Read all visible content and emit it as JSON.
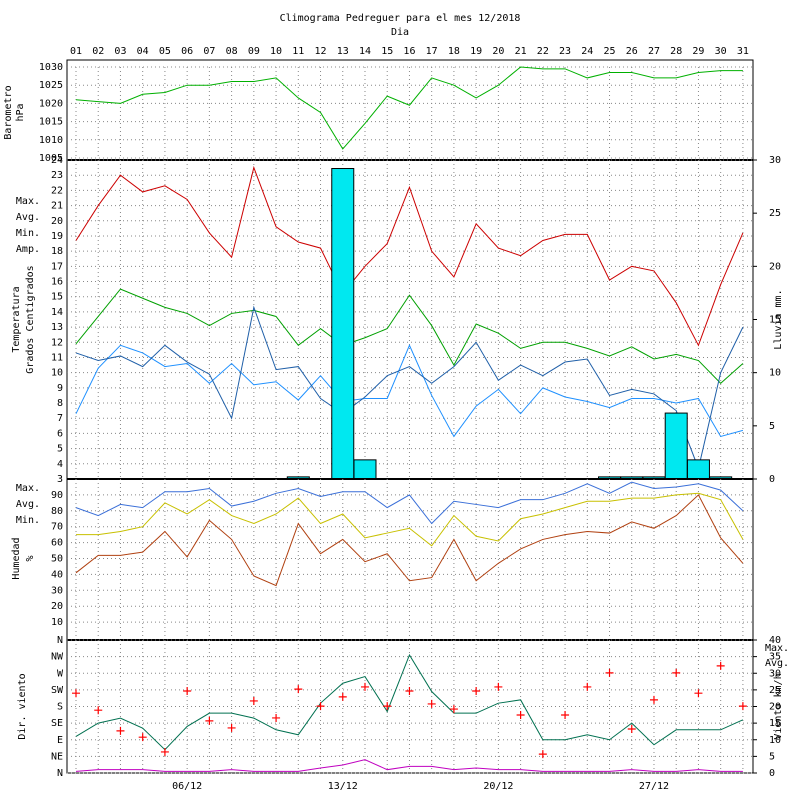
{
  "chart_data": [
    {
      "type": "line",
      "title": "Climograma Pedreguer para el mes 12/2018",
      "xlabel": "Dia",
      "categories": [
        "01",
        "02",
        "03",
        "04",
        "05",
        "06",
        "07",
        "08",
        "09",
        "10",
        "11",
        "12",
        "13",
        "14",
        "15",
        "16",
        "17",
        "18",
        "19",
        "20",
        "21",
        "22",
        "23",
        "24",
        "25",
        "26",
        "27",
        "28",
        "29",
        "30",
        "31"
      ],
      "ylabel": [
        "Barometro",
        "hPa"
      ],
      "ylabel_color": "#00a000",
      "ylim": [
        1005,
        1030
      ],
      "yticks": [
        1005,
        1010,
        1015,
        1020,
        1025,
        1030
      ],
      "grid": true,
      "series": [
        {
          "name": null,
          "color": "#00b000",
          "values": [
            1021,
            1020.5,
            1020,
            1022.5,
            1023,
            1025,
            1025,
            1026,
            1026,
            1027,
            1021.5,
            1017.5,
            1007.5,
            1014.5,
            1022,
            1019.5,
            1027,
            1025,
            1021.5,
            1025,
            1030,
            1029.5,
            1029.5,
            1027,
            1028.5,
            1028.5,
            1027,
            1027,
            1028.5,
            1029,
            1029
          ]
        }
      ]
    },
    {
      "type": "line",
      "ylabel": [
        "Temperatura",
        "Grados Centigrados"
      ],
      "ylabel_color": "#cc0000",
      "ylim": [
        3,
        24
      ],
      "yticks": [
        3,
        4,
        5,
        6,
        7,
        8,
        9,
        10,
        11,
        12,
        13,
        14,
        15,
        16,
        17,
        18,
        19,
        20,
        21,
        22,
        23,
        24
      ],
      "y2lim": [
        0,
        30
      ],
      "y2ticks": [
        0,
        5,
        10,
        15,
        20,
        25,
        30
      ],
      "grid": true,
      "series": [
        {
          "name": "Max.",
          "color": "#cc0000",
          "values": [
            18.7,
            21,
            23,
            21.9,
            22.3,
            21.4,
            19.2,
            17.6,
            23.5,
            19.6,
            18.6,
            18.2,
            15.2,
            17,
            18.5,
            22.2,
            18,
            16.3,
            19.8,
            18.2,
            17.7,
            18.7,
            19.1,
            19.1,
            16.1,
            17,
            16.7,
            14.6,
            11.8,
            15.8,
            19.2
          ]
        },
        {
          "name": "Avg.",
          "color": "#00a000",
          "values": [
            11.9,
            13.7,
            15.5,
            14.9,
            14.3,
            13.9,
            13.1,
            13.9,
            14.1,
            13.7,
            11.8,
            12.9,
            11.8,
            12.3,
            12.9,
            15.1,
            13.1,
            10.5,
            13.2,
            12.6,
            11.6,
            12,
            12,
            11.6,
            11.1,
            11.7,
            10.9,
            11.2,
            10.8,
            9.3,
            10.6
          ]
        },
        {
          "name": "Min.",
          "color": "#1e90ff",
          "values": [
            7.3,
            10.3,
            11.8,
            11.3,
            10.4,
            10.6,
            9.3,
            10.6,
            9.2,
            9.4,
            8.2,
            9.8,
            8.1,
            8.3,
            8.3,
            11.8,
            8.5,
            5.8,
            7.8,
            8.9,
            7.3,
            9,
            8.4,
            8.1,
            7.7,
            8.3,
            8.3,
            8,
            8.3,
            5.8,
            6.2
          ]
        },
        {
          "name": "Amp.",
          "color": "#1f5fa8",
          "values": [
            11.3,
            10.8,
            11.1,
            10.4,
            11.8,
            10.7,
            9.9,
            7,
            14.3,
            10.2,
            10.4,
            8.3,
            7.3,
            8.4,
            9.8,
            10.4,
            9.3,
            10.4,
            12,
            9.5,
            10.5,
            9.8,
            10.7,
            10.9,
            8.5,
            8.9,
            8.6,
            7.5,
            3.7,
            10,
            13
          ]
        },
        {
          "name": "Lluvia mm.",
          "type": "bar",
          "axis": "y2",
          "color": "#00e8f0",
          "values": [
            0,
            0,
            0,
            0,
            0,
            0,
            0,
            0,
            0,
            0,
            0.2,
            0,
            29.2,
            1.8,
            0,
            0,
            0,
            0,
            0,
            0,
            0,
            0,
            0,
            0,
            0.2,
            0.2,
            0.2,
            6.2,
            1.8,
            0.2,
            0
          ]
        }
      ]
    },
    {
      "type": "line",
      "ylabel": [
        "Humedad",
        "%"
      ],
      "ylabel_color": "#b04010",
      "ylim": [
        0,
        100
      ],
      "yticks": [
        10,
        20,
        30,
        40,
        50,
        60,
        70,
        80,
        90
      ],
      "grid": true,
      "series": [
        {
          "name": "Max.",
          "color": "#3a6fd8",
          "values": [
            82,
            77,
            84,
            82,
            92,
            92,
            94,
            83,
            86,
            91,
            94,
            89,
            92,
            92,
            82,
            90,
            72,
            86,
            84,
            82,
            87,
            87,
            91,
            97,
            91,
            98,
            94,
            95,
            97,
            93,
            80
          ]
        },
        {
          "name": "Avg.",
          "color": "#c8c000",
          "values": [
            65,
            65,
            67,
            70,
            85,
            78,
            87,
            77,
            72,
            78,
            88,
            72,
            78,
            63,
            66,
            69,
            58,
            77,
            64,
            61,
            75,
            78,
            82,
            86,
            86,
            88,
            88,
            90,
            91,
            87,
            62
          ]
        },
        {
          "name": "Min.",
          "color": "#b04010",
          "values": [
            41,
            52,
            52,
            54,
            67,
            51,
            74,
            62,
            39,
            33,
            72,
            53,
            62,
            48,
            53,
            36,
            38,
            62,
            36,
            47,
            56,
            62,
            65,
            67,
            66,
            73,
            69,
            77,
            90,
            63,
            47
          ]
        }
      ]
    },
    {
      "type": "line",
      "ylabel": [
        "Dir. viento"
      ],
      "ylabel_color": "#cc0000",
      "y2label": "Viento km/h",
      "y2label_color": "#c000c0",
      "categories": [
        null,
        null,
        null,
        null,
        null,
        "06/12",
        null,
        null,
        null,
        null,
        null,
        null,
        "13/12",
        null,
        null,
        null,
        null,
        null,
        null,
        "20/12",
        null,
        null,
        null,
        null,
        null,
        null,
        "27/12",
        null,
        null,
        null,
        null
      ],
      "ylim": [
        0,
        360
      ],
      "yticks": [
        {
          "value": 0,
          "label": "N"
        },
        {
          "value": 45,
          "label": "NE"
        },
        {
          "value": 90,
          "label": "E"
        },
        {
          "value": 135,
          "label": "SE"
        },
        {
          "value": 180,
          "label": "S"
        },
        {
          "value": 225,
          "label": "SW"
        },
        {
          "value": 270,
          "label": "W"
        },
        {
          "value": 315,
          "label": "NW"
        },
        {
          "value": 360,
          "label": "N"
        }
      ],
      "y2lim": [
        0,
        40
      ],
      "y2ticks": [
        0,
        5,
        10,
        15,
        20,
        25,
        30,
        35,
        40
      ],
      "grid": true,
      "series": [
        {
          "name": "Max.",
          "axis": "y2",
          "color": "#007050",
          "values": [
            11,
            15,
            16.5,
            13.5,
            7,
            14,
            18,
            18,
            16.5,
            13,
            11.5,
            21,
            27,
            29,
            18.5,
            35.5,
            24.5,
            18,
            18,
            21,
            22,
            10,
            10,
            11.5,
            10,
            15,
            8.5,
            13,
            13,
            13,
            16
          ]
        },
        {
          "name": "Avg.",
          "axis": "y2",
          "color": "#c000c0",
          "values": [
            0.5,
            1,
            1,
            1,
            0.5,
            0.5,
            0.5,
            1,
            0.5,
            0.5,
            0.5,
            1.5,
            2.4,
            4,
            1,
            2,
            2,
            1,
            1.5,
            1,
            1,
            0.5,
            0.5,
            0.5,
            0.5,
            1,
            0.5,
            0.5,
            1,
            0.5,
            0.5
          ]
        },
        {
          "name": null,
          "type": "marker",
          "color": "#ff0000",
          "values": [
            216,
            170,
            114,
            97,
            57,
            222,
            141,
            122,
            195,
            149,
            227,
            181,
            206,
            233,
            181,
            222,
            187,
            173,
            222,
            233,
            157,
            51,
            157,
            233,
            271,
            119,
            198,
            271,
            216,
            290,
            181
          ]
        }
      ]
    }
  ]
}
